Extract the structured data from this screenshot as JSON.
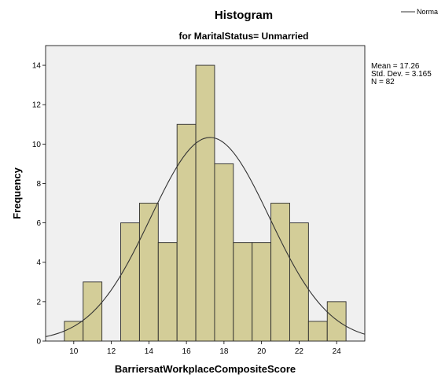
{
  "chart_data": {
    "type": "bar",
    "title": "Histogram",
    "subtitle": "for MaritalStatus= Unmarried",
    "xlabel": "BarriersatWorkplaceCompositeScore",
    "ylabel": "Frequency",
    "xlim": [
      8.5,
      25.5
    ],
    "ylim": [
      0,
      15
    ],
    "x_ticks": [
      10,
      12,
      14,
      16,
      18,
      20,
      22,
      24
    ],
    "y_ticks": [
      0,
      2,
      4,
      6,
      8,
      10,
      12,
      14
    ],
    "bin_width": 1,
    "bins": [
      {
        "x": 10,
        "count": 1
      },
      {
        "x": 11,
        "count": 3
      },
      {
        "x": 12,
        "count": 0
      },
      {
        "x": 13,
        "count": 6
      },
      {
        "x": 14,
        "count": 7
      },
      {
        "x": 15,
        "count": 5
      },
      {
        "x": 16,
        "count": 11
      },
      {
        "x": 17,
        "count": 14
      },
      {
        "x": 18,
        "count": 9
      },
      {
        "x": 19,
        "count": 5
      },
      {
        "x": 20,
        "count": 5
      },
      {
        "x": 21,
        "count": 7
      },
      {
        "x": 22,
        "count": 6
      },
      {
        "x": 23,
        "count": 1
      },
      {
        "x": 24,
        "count": 2
      }
    ],
    "normal_curve": {
      "mean": 17.26,
      "sd": 3.165,
      "n": 82
    },
    "stats": {
      "mean": "Mean = 17.26",
      "sd": "Std. Dev. = 3.165",
      "n": "N = 82"
    },
    "legend": {
      "label": "Norma"
    },
    "colors": {
      "bar_fill": "#d3cd98",
      "bar_stroke": "#2b2b2b",
      "plot_bg": "#f0f0f0",
      "curve": "#333333"
    },
    "grid": false,
    "legend_position": "top-right"
  }
}
